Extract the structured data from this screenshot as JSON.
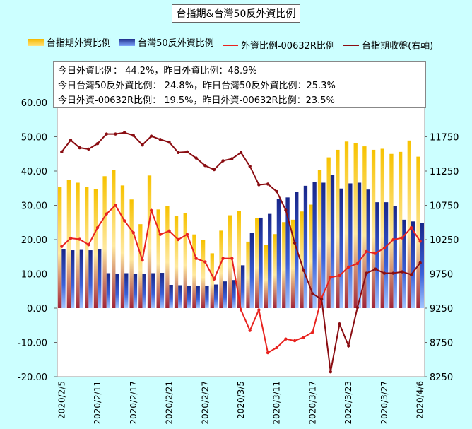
{
  "chart_data": {
    "type": "bar",
    "title": "台指期&台灣50反外資比例",
    "info_lines": [
      "今日外資比例：  44.2%，昨日外資比例：48.9%",
      "今日台灣50反外資比例：  24.8%，昨日台灣50反外資比例：25.3%",
      "今日外資-00632R比例：  19.5%，昨日外資-00632R比例：23.5%"
    ],
    "x_tick_labels": [
      "2020/2/5",
      "2020/2/11",
      "2020/2/17",
      "2020/2/21",
      "2020/2/27",
      "2020/3/5",
      "2020/3/11",
      "2020/3/17",
      "2020/3/23",
      "2020/3/27",
      "2020/4/6"
    ],
    "y_left": {
      "ylim": [
        -20,
        60
      ],
      "ticks": [
        "60.00",
        "50.00",
        "40.00",
        "30.00",
        "20.00",
        "10.00",
        "0.00",
        "-10.00",
        "-20.00"
      ]
    },
    "y_right": {
      "ylim": [
        8250,
        12250
      ],
      "ticks": [
        "11750",
        "11250",
        "10750",
        "10250",
        "9750",
        "9250",
        "8750",
        "8250"
      ]
    },
    "series": [
      {
        "name": "台指期外資比例",
        "axis": "left",
        "style": "bar",
        "color": "#f5b800",
        "values": [
          35.4,
          37.4,
          36.6,
          35.4,
          34.8,
          38.5,
          40.3,
          35.8,
          31.7,
          24.5,
          38.7,
          28.8,
          29.7,
          26.8,
          27.7,
          21.5,
          19.8,
          16.0,
          22.6,
          27.1,
          28.4,
          19.4,
          26.2,
          18.4,
          21.6,
          25.1,
          25.8,
          28.2,
          30.2,
          40.4,
          44.0,
          46.2,
          48.6,
          48.1,
          47.2,
          46.2,
          46.5,
          45.0,
          45.6,
          48.9,
          44.2
        ]
      },
      {
        "name": "台灣50反外資比例",
        "axis": "left",
        "style": "bar",
        "color": "#1f2f8c",
        "values": [
          17.2,
          16.9,
          17.0,
          16.9,
          17.3,
          10.2,
          10.1,
          10.2,
          10.1,
          10.1,
          10.2,
          10.3,
          6.8,
          6.7,
          6.6,
          6.6,
          6.6,
          6.9,
          7.8,
          8.2,
          12.5,
          22.0,
          26.4,
          27.5,
          31.9,
          32.3,
          33.9,
          35.7,
          36.8,
          36.6,
          38.8,
          34.9,
          36.4,
          36.6,
          34.6,
          30.9,
          30.9,
          29.7,
          25.8,
          25.3,
          24.8
        ]
      },
      {
        "name": "外資比例-00632R比例",
        "axis": "left",
        "style": "line",
        "color": "#e8231f",
        "values": [
          18.0,
          20.4,
          20.1,
          18.5,
          23.5,
          27.5,
          30.0,
          25.5,
          22.0,
          14.0,
          28.5,
          21.5,
          22.5,
          20.0,
          21.5,
          14.5,
          13.5,
          8.5,
          14.5,
          14.5,
          -0.5,
          -6.5,
          -0.5,
          -13.0,
          -11.5,
          -9.0,
          -9.5,
          -8.5,
          -7.0,
          3.0,
          9.0,
          9.5,
          12.0,
          13.0,
          16.5,
          16.0,
          17.5,
          20.0,
          20.5,
          23.5,
          19.5
        ]
      },
      {
        "name": "台指期收盤(右軸)",
        "axis": "right",
        "style": "line",
        "color": "#8a0d12",
        "values": [
          11530,
          11700,
          11590,
          11570,
          11650,
          11790,
          11790,
          11810,
          11770,
          11630,
          11760,
          11710,
          11670,
          11520,
          11530,
          11440,
          11330,
          11270,
          11400,
          11430,
          11520,
          11320,
          11050,
          11060,
          10950,
          10680,
          10200,
          9800,
          9460,
          9380,
          8320,
          9020,
          8700,
          9260,
          9760,
          9820,
          9760,
          9760,
          9780,
          9740,
          9910
        ]
      }
    ],
    "grid": false,
    "legend_placement": "top"
  }
}
